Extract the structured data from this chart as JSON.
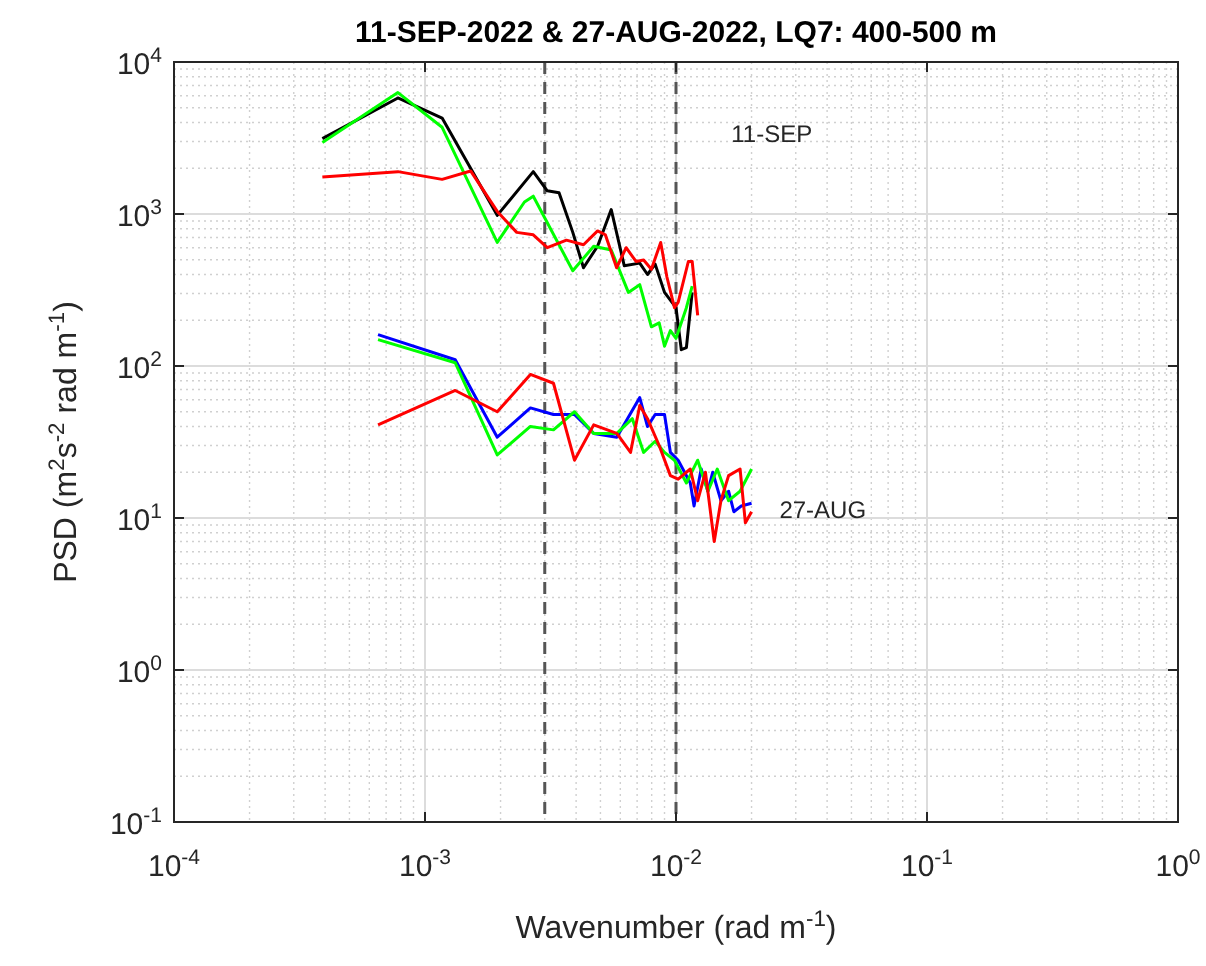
{
  "chart_data": {
    "type": "line",
    "title": "11-SEP-2022 & 27-AUG-2022, LQ7: 400-500 m",
    "xlabel": "Wavenumber (rad m$^{-1}$)",
    "ylabel": "PSD (m$^{2}$s$^{-2}$ rad m$^{-1}$)",
    "log": "xy",
    "grid": true,
    "line_style": "solid",
    "xlim": [
      0.0001,
      1
    ],
    "xticks": [
      {
        "value": 0.0001,
        "label": "10$^{-4}$"
      },
      {
        "value": 0.001,
        "label": "10$^{-3}$"
      },
      {
        "value": 0.01,
        "label": "10$^{-2}$"
      },
      {
        "value": 0.1,
        "label": "10$^{-1}$"
      },
      {
        "value": 1,
        "label": "10$^{0}$"
      }
    ],
    "ylim": [
      0.1,
      10000
    ],
    "yticks": [
      {
        "value": 0.1,
        "label": "10$^{-1}$"
      },
      {
        "value": 1,
        "label": "10$^{0}$"
      },
      {
        "value": 10,
        "label": "10$^{1}$"
      },
      {
        "value": 100,
        "label": "10$^{2}$"
      },
      {
        "value": 1000,
        "label": "10$^{3}$"
      },
      {
        "value": 10000,
        "label": "10$^{4}$"
      }
    ],
    "ref_lines": [
      {
        "axis": "x",
        "value": 0.003,
        "color": "#555555",
        "line_style": "dashed"
      },
      {
        "axis": "x",
        "value": 0.01,
        "color": "#555555",
        "line_style": "dashed"
      }
    ],
    "annotations": [
      "11-SEP",
      "27-AUG"
    ],
    "series": [
      {
        "color": "#000000",
        "x": [
          0.00039,
          0.00078,
          0.00117,
          0.00194,
          0.0027,
          0.00307,
          0.00342,
          0.00388,
          0.00428,
          0.00487,
          0.00552,
          0.00622,
          0.00717,
          0.0077,
          0.00826,
          0.009,
          0.01,
          0.0105,
          0.011,
          0.0116
        ],
        "values": [
          3130,
          5800,
          4280,
          980,
          1900,
          1420,
          1380,
          757,
          443,
          614,
          1070,
          457,
          475,
          400,
          468,
          305,
          242,
          128,
          132,
          305
        ]
      },
      {
        "color": "#00ff00",
        "x": [
          0.00039,
          0.00078,
          0.00117,
          0.00194,
          0.00249,
          0.0027,
          0.00388,
          0.0047,
          0.00552,
          0.00646,
          0.00717,
          0.00798,
          0.00857,
          0.009,
          0.0095,
          0.01,
          0.011,
          0.0116
        ],
        "values": [
          2950,
          6290,
          3720,
          650,
          1200,
          1310,
          423,
          614,
          580,
          305,
          343,
          181,
          192,
          135,
          171,
          152,
          242,
          335
        ]
      },
      {
        "color": "#ff0000",
        "x": [
          0.00039,
          0.00078,
          0.00117,
          0.00152,
          0.00194,
          0.00232,
          0.0027,
          0.00307,
          0.00366,
          0.00428,
          0.00487,
          0.00523,
          0.0058,
          0.00633,
          0.00693,
          0.00743,
          0.00798,
          0.00869,
          0.0092,
          0.00986,
          0.0102,
          0.0112,
          0.0116,
          0.0122
        ],
        "values": [
          1750,
          1900,
          1690,
          1920,
          1040,
          757,
          730,
          600,
          673,
          628,
          774,
          730,
          443,
          600,
          487,
          498,
          433,
          650,
          385,
          242,
          262,
          487,
          487,
          215
        ]
      },
      {
        "color": "#0000ff",
        "x": [
          0.00065,
          0.00132,
          0.00194,
          0.00263,
          0.00325,
          0.00394,
          0.0047,
          0.00581,
          0.00717,
          0.0077,
          0.00826,
          0.009,
          0.0095,
          0.0102,
          0.0114,
          0.0118,
          0.0126,
          0.0134,
          0.014,
          0.0151,
          0.0162,
          0.017,
          0.0182,
          0.02
        ],
        "values": [
          161,
          110,
          34,
          53,
          48,
          48,
          36,
          34,
          62,
          40,
          48,
          48,
          27,
          24,
          17,
          12,
          21,
          15,
          20,
          13,
          15,
          11,
          12,
          12.5
        ]
      },
      {
        "color": "#00ff00",
        "x": [
          0.00065,
          0.00132,
          0.00194,
          0.00263,
          0.00325,
          0.00394,
          0.0047,
          0.00581,
          0.0067,
          0.00743,
          0.00826,
          0.009,
          0.00986,
          0.011,
          0.0122,
          0.0134,
          0.0146,
          0.0162,
          0.018,
          0.02
        ],
        "values": [
          149,
          105,
          26,
          40,
          38,
          50,
          36,
          36,
          45,
          27,
          32,
          27,
          24,
          17,
          24,
          15,
          21,
          13,
          15,
          21
        ]
      },
      {
        "color": "#ff0000",
        "x": [
          0.00065,
          0.00132,
          0.00194,
          0.00263,
          0.00325,
          0.00394,
          0.0047,
          0.00581,
          0.00659,
          0.00717,
          0.0077,
          0.00857,
          0.0095,
          0.0102,
          0.0114,
          0.0122,
          0.0131,
          0.0142,
          0.0151,
          0.0162,
          0.018,
          0.0189,
          0.02
        ],
        "values": [
          41,
          69,
          50,
          88,
          77,
          24,
          41,
          36,
          27,
          55,
          45,
          30,
          19,
          18,
          21,
          13,
          20,
          7,
          13,
          19,
          21,
          9.3,
          11
        ]
      }
    ]
  }
}
